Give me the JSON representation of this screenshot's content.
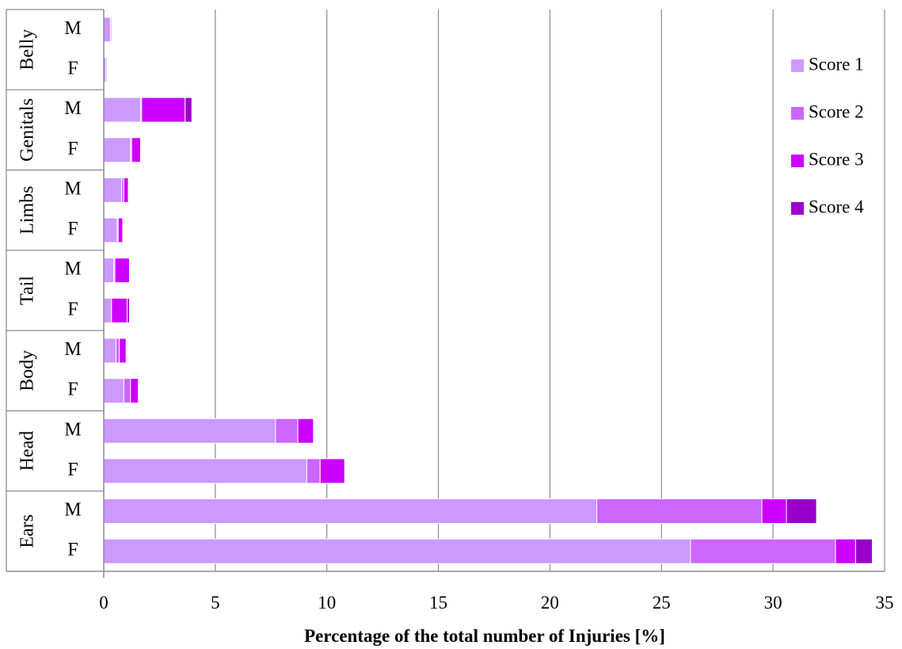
{
  "chart_data": {
    "type": "bar",
    "orientation": "horizontal",
    "stacked": true,
    "xlabel": "Percentage of the total number of Injuries [%]",
    "xlim": [
      0,
      35
    ],
    "xticks": [
      0,
      5,
      10,
      15,
      20,
      25,
      30,
      35
    ],
    "grid": "vertical",
    "legend_position": "top-right",
    "groups": [
      "Belly",
      "Genitals",
      "Limbs",
      "Tail",
      "Body",
      "Head",
      "Ears"
    ],
    "sexes": [
      "M",
      "F"
    ],
    "series": [
      {
        "name": "Score 1",
        "color": "#cc99ff",
        "values": [
          0.3,
          0.1,
          1.65,
          1.2,
          0.8,
          0.6,
          0.45,
          0.35,
          0.55,
          0.9,
          7.7,
          9.1,
          22.1,
          26.3
        ]
      },
      {
        "name": "Score 2",
        "color": "#cc66ff",
        "values": [
          0.05,
          0.05,
          0.05,
          0.05,
          0.1,
          0.05,
          0.05,
          0.0,
          0.15,
          0.3,
          1.0,
          0.6,
          7.4,
          6.5
        ]
      },
      {
        "name": "Score 3",
        "color": "#cc00ff",
        "values": [
          0.0,
          0.0,
          1.95,
          0.4,
          0.2,
          0.2,
          0.65,
          0.7,
          0.3,
          0.35,
          0.7,
          1.1,
          1.1,
          0.9
        ]
      },
      {
        "name": "Score 4",
        "color": "#9900cc",
        "values": [
          0.0,
          0.0,
          0.3,
          0.0,
          0.0,
          0.0,
          0.0,
          0.1,
          0.0,
          0.0,
          0.0,
          0.0,
          1.35,
          0.75
        ]
      }
    ]
  }
}
